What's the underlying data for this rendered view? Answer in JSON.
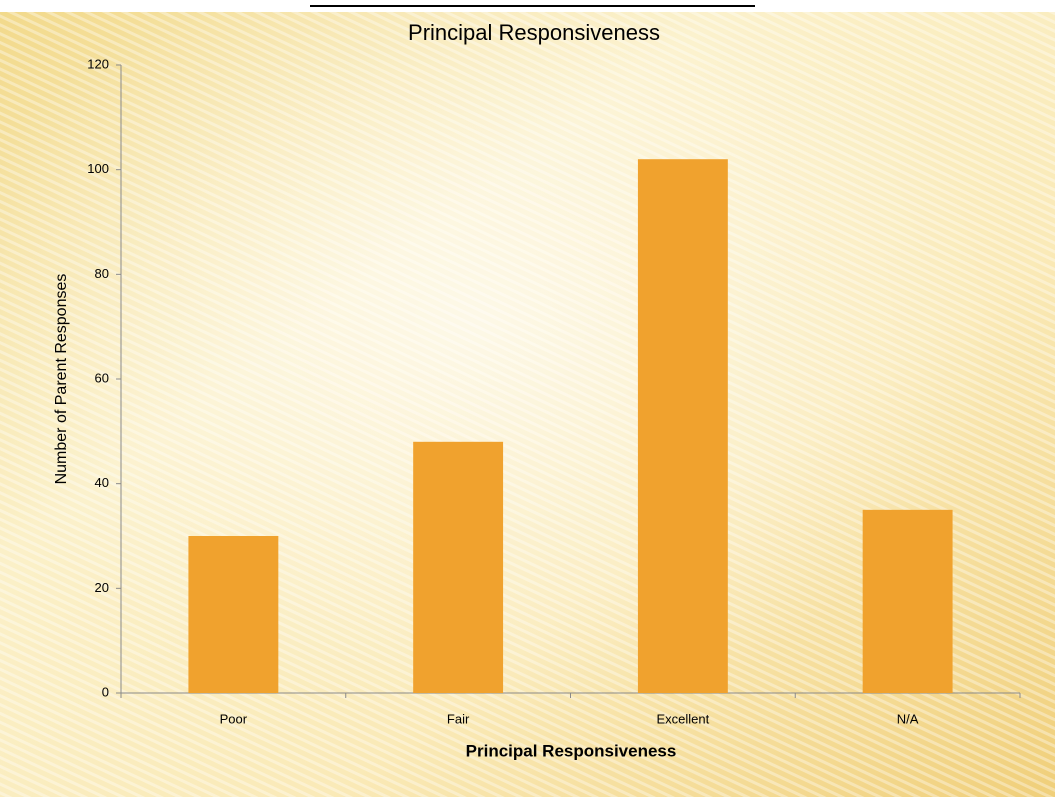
{
  "chart_data": {
    "type": "bar",
    "title": "Principal Responsiveness",
    "x_label": "Principal Responsiveness",
    "y_label": "Number of Parent Responses",
    "categories": [
      "Poor",
      "Fair",
      "Excellent",
      "N/A"
    ],
    "values": [
      30,
      48,
      102,
      35
    ],
    "color": "#f0a22e",
    "ylim": [
      0,
      120
    ],
    "yticks": [
      0,
      20,
      40,
      60,
      80,
      100,
      120
    ],
    "grid": false
  }
}
